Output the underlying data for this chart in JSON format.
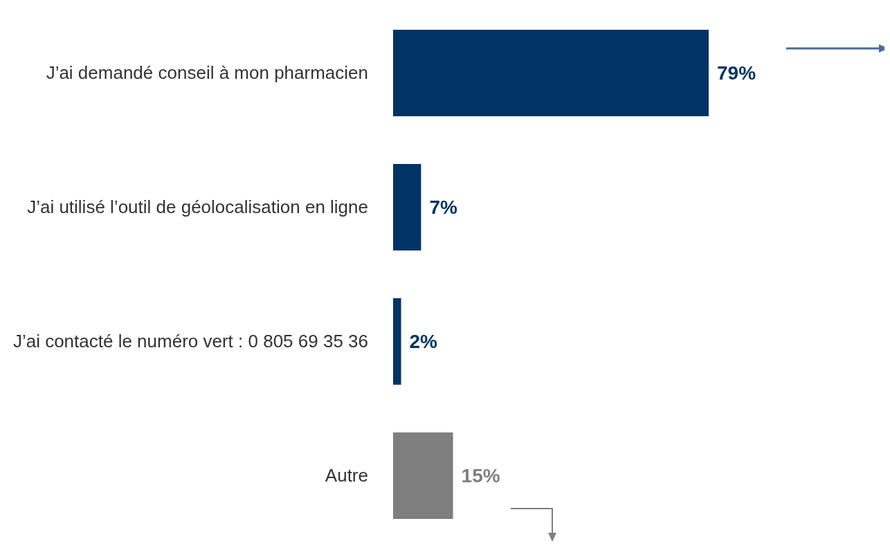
{
  "chart_data": {
    "type": "bar",
    "orientation": "horizontal",
    "categories": [
      "J’ai demandé conseil à mon pharmacien",
      "J’ai utilisé l’outil de géolocalisation en ligne",
      "J’ai contacté le numéro vert : 0 805 69 35 36",
      "Autre"
    ],
    "values": [
      79,
      7,
      2,
      15
    ],
    "colors": [
      "#003466",
      "#003466",
      "#003466",
      "#7f7f7f"
    ],
    "value_labels": [
      "79%",
      "7%",
      "2%",
      "15%"
    ],
    "tick_labels": "y"
  }
}
